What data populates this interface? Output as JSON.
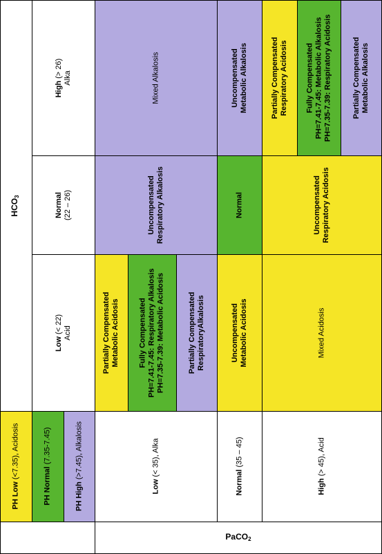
{
  "header": {
    "hco3_main": "HCO",
    "hco3_sub": "3",
    "paco2_main": "PaCO",
    "paco2_sub": "2"
  },
  "hco3_columns": {
    "low": {
      "name": "Low",
      "range": "(< 22)",
      "meaning": "Acid"
    },
    "normal": {
      "name": "Normal",
      "range": "(22 – 26)"
    },
    "high": {
      "name": "High",
      "range": "(> 26)",
      "meaning": "Alka"
    }
  },
  "ph_legend": {
    "low": {
      "name": "PH Low",
      "range": "(<7.35),",
      "meaning": "Acidosis"
    },
    "normal": {
      "name": "PH Normal",
      "range": "(7.35-7.45)"
    },
    "high": {
      "name": "PH High",
      "range": "(>7.45),",
      "meaning": "Alkalosis"
    }
  },
  "paco2_rows": {
    "low": {
      "name": "Low",
      "range": "(< 35),",
      "meaning": "Alka"
    },
    "normal": {
      "name": "Normal",
      "range": "(35 – 45)"
    },
    "high": {
      "name": "High",
      "range": "(> 45),",
      "meaning": "Acid"
    }
  },
  "cells": {
    "row_low": {
      "col_low": {
        "partial": {
          "line1": "Partially Compensated",
          "line2": "Metabolic Acidosis"
        },
        "full": {
          "line1": "Fully Compensated",
          "line2": "PH=7.41-7.45: Respiratory Alkalosis",
          "line3": "PH=7.35-7.39: Metabolic Acidosis"
        },
        "partial_resp": {
          "line1": "Partially Compensated",
          "line2": "RespiratoryAlkalosis"
        }
      },
      "col_normal": {
        "line1": "Uncompensated",
        "line2": "Respiratory Alkalosis"
      },
      "col_high": {
        "line1": "Mixed Alkalosis"
      }
    },
    "row_normal": {
      "col_low": {
        "line1": "Uncompensated",
        "line2": "Metabolic Acidosis"
      },
      "col_normal": {
        "line1": "Normal"
      },
      "col_high": {
        "line1": "Uncompensated",
        "line2": "Metabolic Alkalosis"
      }
    },
    "row_high": {
      "col_low": {
        "line1": "Mixed Acidosis"
      },
      "col_normal": {
        "line1": "Uncompensated",
        "line2": "Respiratory Acidosis"
      },
      "col_high": {
        "partial_resp": {
          "line1": "Partially Compensated",
          "line2": "Respiratory Acidosis"
        },
        "full": {
          "line1": "Fully Compensated",
          "line2": "PH=7.41-7.45: Metabolic Alkalosis",
          "line3": "PH=7.35-7.39: Respiratory Acidosis"
        },
        "partial_meta": {
          "line1": "Partially Compensated",
          "line2": "Metabolic Alkalosis"
        }
      }
    }
  },
  "colors": {
    "yellow": "#f5e526",
    "green": "#57b52f",
    "purple": "#b3aae0"
  }
}
